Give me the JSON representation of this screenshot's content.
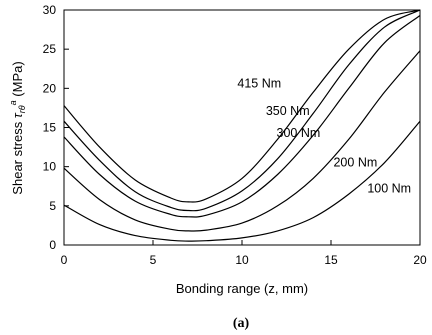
{
  "chart_data": {
    "type": "line",
    "xlabel": "Bonding range (z, mm)",
    "ylabel_main": "Shear stress ",
    "ylabel_symbol": "τ",
    "ylabel_sub": "rθ",
    "ylabel_sup": "a",
    "ylabel_unit": " (MPa)",
    "xlim": [
      0,
      20
    ],
    "ylim": [
      0,
      30
    ],
    "xticks": [
      0,
      5,
      10,
      15,
      20
    ],
    "yticks": [
      0,
      5,
      10,
      15,
      20,
      25,
      30
    ],
    "grid": false,
    "caption": "(a)",
    "series": [
      {
        "name": "415 Nm",
        "x": [
          0,
          2,
          4,
          6,
          7,
          8,
          10,
          12,
          14,
          16,
          18,
          20
        ],
        "y": [
          17.8,
          12.5,
          8.3,
          6.0,
          5.5,
          5.9,
          8.5,
          13.5,
          19.5,
          25.0,
          28.8,
          30.0
        ]
      },
      {
        "name": "350 Nm",
        "x": [
          0,
          2,
          4,
          6,
          7,
          8,
          10,
          12,
          14,
          16,
          18,
          20
        ],
        "y": [
          15.8,
          10.8,
          6.8,
          4.8,
          4.4,
          4.7,
          6.9,
          11.0,
          16.8,
          23.0,
          27.8,
          30.0
        ]
      },
      {
        "name": "300 Nm",
        "x": [
          0,
          2,
          4,
          6,
          7,
          8,
          10,
          12,
          14,
          16,
          18,
          20
        ],
        "y": [
          13.8,
          9.0,
          5.6,
          3.9,
          3.6,
          3.8,
          5.5,
          9.0,
          14.0,
          20.0,
          25.8,
          29.3
        ]
      },
      {
        "name": "200 Nm",
        "x": [
          0,
          2,
          4,
          6,
          7,
          8,
          10,
          12,
          14,
          16,
          18,
          20
        ],
        "y": [
          9.8,
          5.8,
          3.2,
          2.0,
          1.8,
          1.9,
          2.8,
          5.0,
          8.5,
          13.5,
          19.5,
          24.8
        ]
      },
      {
        "name": "100 Nm",
        "x": [
          0,
          2,
          4,
          6,
          7,
          8,
          10,
          12,
          14,
          16,
          18,
          20
        ],
        "y": [
          5.1,
          2.6,
          1.2,
          0.6,
          0.5,
          0.55,
          0.9,
          1.8,
          3.5,
          6.5,
          10.5,
          15.8
        ]
      }
    ]
  }
}
